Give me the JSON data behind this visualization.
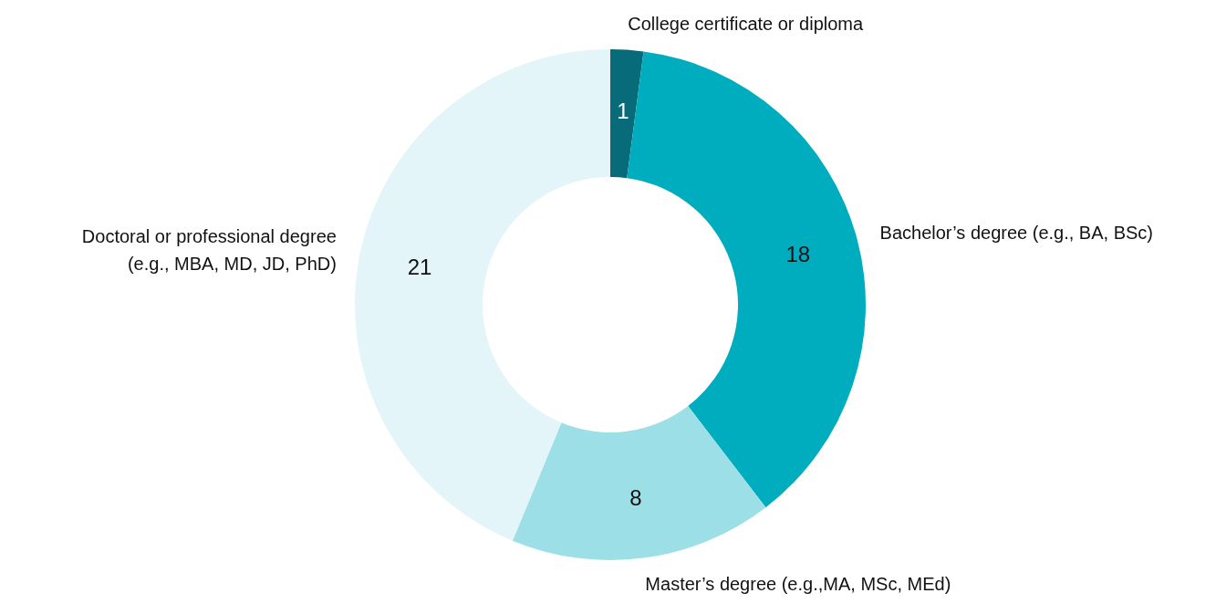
{
  "chart_data": {
    "type": "donut",
    "categories": [
      "College certificate or diploma",
      "Bachelor’s degree (e.g., BA, BSc)",
      "Master’s degree (e.g.,MA, MSc, MEd)",
      "Doctoral or professional degree\n(e.g., MBA, MD, JD, PhD)"
    ],
    "values": [
      1,
      18,
      8,
      21
    ],
    "colors": [
      "#086b7a",
      "#00adbf",
      "#9ddfe6",
      "#e3f5f8"
    ],
    "data_labels": true
  }
}
